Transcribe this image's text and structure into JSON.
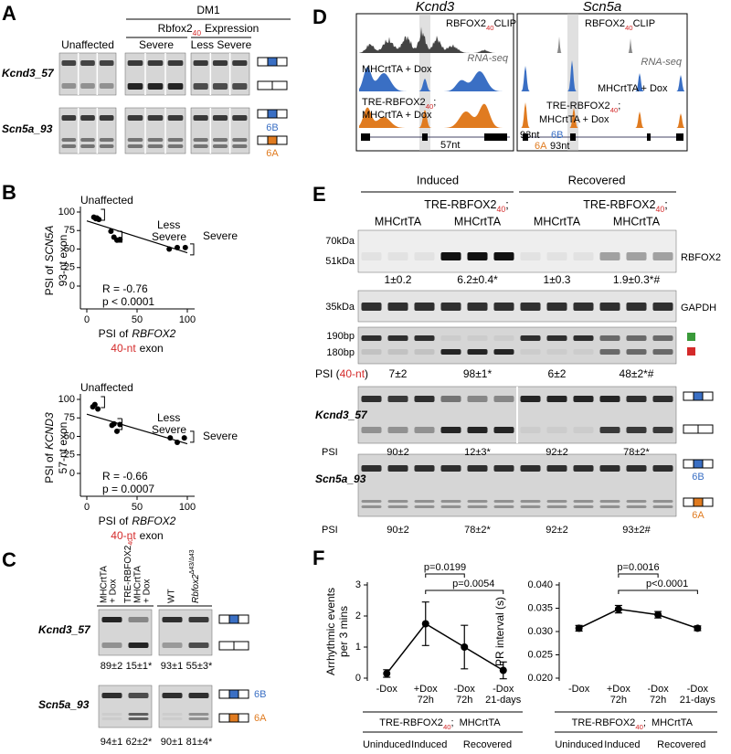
{
  "panel_a": {
    "letter": "A",
    "cohort": "DM1",
    "expression": {
      "gene": "Rbfox2",
      "sub": "40",
      "rest": "Expression"
    },
    "unaffected": "Unaffected",
    "severe": "Severe",
    "less_severe": "Less Severe",
    "rows": [
      "Kcnd3_57",
      "Scn5a_93"
    ],
    "isoforms": [
      "6B",
      "6A"
    ]
  },
  "panel_b": {
    "letter": "B",
    "charts": [
      {
        "type": "scatter",
        "y_label": {
          "prefix": "PSI of",
          "gene": "SCN5A",
          "line2": "93-nt exon"
        },
        "x_label": {
          "prefix": "PSI of",
          "gene": "RBFOX2",
          "line2_red": "40-nt",
          "line2": "exon"
        },
        "xlim": [
          0,
          100
        ],
        "xticks": [
          0,
          50,
          100
        ],
        "ylim": [
          0,
          100
        ],
        "yticks": [
          0,
          25,
          50,
          75,
          100
        ],
        "groups": [
          {
            "name": [
              "Unaffected"
            ],
            "x": [
              7,
              9,
              10,
              12
            ],
            "y": [
              93,
              91,
              92,
              90
            ]
          },
          {
            "name": [
              "Less",
              "Severe"
            ],
            "x": [
              24,
              27,
              30,
              33
            ],
            "y": [
              74,
              66,
              62,
              63
            ]
          },
          {
            "name": [
              "Severe"
            ],
            "x": [
              82,
              90,
              98
            ],
            "y": [
              50,
              52,
              52
            ]
          }
        ],
        "fit": {
          "x": [
            0,
            100
          ],
          "y": [
            88,
            45
          ]
        },
        "stats": [
          "R = -0.76",
          "p < 0.0001"
        ]
      },
      {
        "type": "scatter",
        "y_label": {
          "prefix": "PSI of",
          "gene": "KCND3",
          "line2": "57-nt exon"
        },
        "x_label": {
          "prefix": "PSI of",
          "gene": "RBFOX2",
          "line2_red": "40-nt",
          "line2": "exon"
        },
        "xlim": [
          0,
          100
        ],
        "xticks": [
          0,
          50,
          100
        ],
        "ylim": [
          0,
          100
        ],
        "yticks": [
          0,
          25,
          50,
          75,
          100
        ],
        "groups": [
          {
            "name": [
              "Unaffected"
            ],
            "x": [
              6,
              8,
              11
            ],
            "y": [
              90,
              93,
              87
            ]
          },
          {
            "name": [
              "Less",
              "Severe"
            ],
            "x": [
              25,
              27,
              30,
              33
            ],
            "y": [
              65,
              67,
              57,
              66
            ]
          },
          {
            "name": [
              "Severe"
            ],
            "x": [
              83,
              90,
              97
            ],
            "y": [
              48,
              42,
              48
            ]
          }
        ],
        "fit": {
          "x": [
            0,
            100
          ],
          "y": [
            80,
            40
          ]
        },
        "stats": [
          "R = -0.66",
          "p = 0.0007"
        ]
      }
    ]
  },
  "panel_c": {
    "letter": "C",
    "headers": {
      "control": [
        "MHCrtTA",
        "+ Dox"
      ],
      "transgenic": {
        "text": "TRE-RBFOX2",
        "sub": "40",
        "lines": [
          "MHCrtTA",
          "+ Dox"
        ]
      },
      "wt": "WT",
      "knockout": {
        "gene": "Rbfox2",
        "sup": "Δ43/Δ43"
      }
    },
    "rows": [
      "Kcnd3_57",
      "Scn5a_93"
    ],
    "values": [
      [
        "89±2",
        "15±1*",
        "93±1",
        "55±3*"
      ],
      [
        "94±1",
        "62±2*",
        "90±1",
        "81±4*"
      ]
    ],
    "isoforms": [
      "6B",
      "6A"
    ]
  },
  "panel_d": {
    "letter": "D",
    "genes": [
      "Kcnd3",
      "Scn5a"
    ],
    "clip": {
      "text": "RBFOX2",
      "sub": "40",
      "rest": "CLIP"
    },
    "rnaseq": "RNA-seq",
    "control": "MHCrtTA + Dox",
    "transgenic": {
      "text": "TRE-RBFOX2",
      "sub": "40",
      "sep": ";",
      "line2": "MHCrtTA + Dox"
    },
    "kcnd3_exon": "57nt",
    "scn5a_exons": [
      "93nt",
      "6B",
      "6A",
      "93nt"
    ]
  },
  "panel_e": {
    "letter": "E",
    "groups": [
      "Induced",
      "Recovered"
    ],
    "control": "MHCrtTA",
    "transgenic": {
      "text": "TRE-RBFOX2",
      "sub": "40",
      "sep": ";"
    },
    "rbfox2": {
      "markers": [
        "70kDa",
        "51kDa"
      ],
      "label": "RBFOX2",
      "values": [
        "1±0.2",
        "6.2±0.4*",
        "1±0.3",
        "1.9±0.3*#"
      ]
    },
    "gapdh": {
      "markers": [
        "35kDa"
      ],
      "label": "GAPDH"
    },
    "rbfox2_psi": {
      "markers": [
        "190bp",
        "180bp"
      ],
      "label": {
        "prefix": "PSI (",
        "red": "40-nt",
        "suffix": ")"
      },
      "values": [
        "7±2",
        "98±1*",
        "6±2",
        "48±2*#"
      ]
    },
    "kcnd3": {
      "label": "Kcnd3_57",
      "psi": "PSI",
      "values": [
        "90±2",
        "12±3*",
        "92±2",
        "78±2*"
      ]
    },
    "scn5a": {
      "label": "Scn5a_93",
      "psi": "PSI",
      "values": [
        "90±2",
        "78±2*",
        "92±2",
        "93±2#"
      ],
      "isoforms": [
        "6B",
        "6A"
      ]
    }
  },
  "panel_f": {
    "letter": "F",
    "charts": [
      {
        "type": "line",
        "y_label": [
          "Arrhythmic events",
          "per 3 mins"
        ],
        "categories": [
          [
            "-Dox"
          ],
          [
            "+Dox",
            "72h"
          ],
          [
            "-Dox",
            "72h"
          ],
          [
            "-Dox",
            "21-days"
          ]
        ],
        "values": [
          0.15,
          1.75,
          1.0,
          0.25
        ],
        "errors": [
          0.12,
          0.7,
          0.7,
          0.27
        ],
        "ylim": [
          0,
          3
        ],
        "yticks": [
          0,
          1,
          2,
          3
        ],
        "comparisons": [
          "p=0.0199",
          "p=0.0054"
        ]
      },
      {
        "type": "line",
        "y_label": [
          "PR interval (s)"
        ],
        "categories": [
          [
            "-Dox"
          ],
          [
            "+Dox",
            "72h"
          ],
          [
            "-Dox",
            "72h"
          ],
          [
            "-Dox",
            "21-days"
          ]
        ],
        "values": [
          0.0307,
          0.0348,
          0.0336,
          0.0307
        ],
        "errors": [
          0.0006,
          0.0008,
          0.0007,
          0.0005
        ],
        "ylim": [
          0.02,
          0.04
        ],
        "yticks": [
          {
            "value": 0.02,
            "label": "0.020"
          },
          {
            "value": 0.025,
            "label": "0.025"
          },
          {
            "value": 0.03,
            "label": "0.030"
          },
          {
            "value": 0.035,
            "label": "0.035"
          },
          {
            "value": 0.04,
            "label": "0.040"
          }
        ],
        "comparisons": [
          "p=0.0016",
          "p<0.0001"
        ]
      }
    ],
    "genotype": {
      "text": "TRE-RBFOX2",
      "sub": "40",
      "sep": ";",
      "rest": "MHCrtTA"
    },
    "groups": [
      "Uninduced",
      "Induced",
      "Recovered"
    ]
  }
}
